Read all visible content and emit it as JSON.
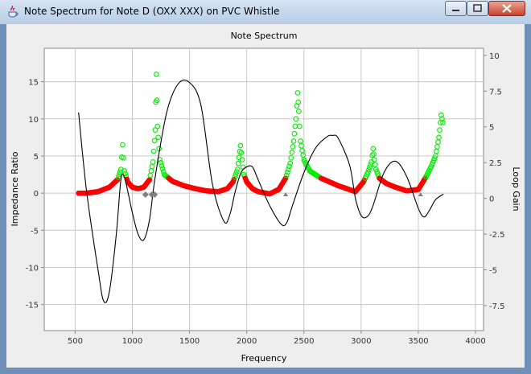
{
  "window": {
    "title": "Note Spectrum for Note D (OXX XXX) on PVC Whistle",
    "controls": [
      "minimize",
      "maximize",
      "close"
    ],
    "icon": "java-cup-icon"
  },
  "chart_data": {
    "type": "line",
    "title": "Note Spectrum",
    "xlabel": "Frequency",
    "ylabel": "Impedance Ratio",
    "y2label": "Loop Gain",
    "xlim": [
      230,
      4070
    ],
    "ylim": [
      -18.5,
      19.5
    ],
    "y2lim": [
      -9.25,
      10.5
    ],
    "xticks": [
      "500",
      "1000",
      "1500",
      "2000",
      "2500",
      "3000",
      "3500",
      "4000"
    ],
    "yticks": [
      "-15",
      "-10",
      "-5",
      "0",
      "5",
      "10",
      "15"
    ],
    "y2ticks": [
      "-7.5",
      "-5",
      "-2.5",
      "0",
      "2.5",
      "5",
      "7.5",
      "10"
    ],
    "grid": true,
    "colors": {
      "impedance_low": "#ff0000",
      "impedance_high": "#00ee00",
      "loop_gain": "#000000",
      "markers": "#808080"
    },
    "series": [
      {
        "kind": "impedance-markers",
        "x": [
          530,
          600,
          700,
          800,
          870,
          900,
          915,
          930,
          960,
          1000,
          1050,
          1100,
          1150,
          1180,
          1200,
          1210,
          1220,
          1240,
          1280,
          1350,
          1450,
          1550,
          1650,
          1750,
          1830,
          1880,
          1920,
          1945,
          1960,
          1975,
          2000,
          2050,
          2100,
          2200,
          2280,
          2340,
          2380,
          2410,
          2430,
          2445,
          2455,
          2470,
          2500,
          2550,
          2650,
          2800,
          2950,
          3020,
          3060,
          3090,
          3105,
          3115,
          3130,
          3160,
          3220,
          3300,
          3400,
          3500,
          3560,
          3610,
          3650,
          3680,
          3700,
          3715
        ],
        "y": [
          0,
          0,
          0.2,
          0.8,
          1.8,
          3.2,
          6.5,
          3.0,
          1.5,
          0.8,
          0.6,
          0.8,
          1.8,
          4.2,
          8.5,
          16.0,
          9.0,
          4.5,
          2.5,
          1.6,
          1.0,
          0.6,
          0.3,
          0.2,
          0.6,
          1.5,
          3.2,
          6.4,
          4.5,
          2.5,
          1.5,
          0.6,
          0.2,
          -0.1,
          0.5,
          2.0,
          4.0,
          7.0,
          10.0,
          13.5,
          11.0,
          7.0,
          4.5,
          3.0,
          2.0,
          1.0,
          0.2,
          1.5,
          2.8,
          4.2,
          6.0,
          4.5,
          3.2,
          2.0,
          1.3,
          0.8,
          0.3,
          0.5,
          2.0,
          3.5,
          5.0,
          7.5,
          10.5,
          9.5
        ],
        "threshold": 2
      },
      {
        "kind": "loop-gain",
        "axis": "right",
        "x": [
          530,
          600,
          700,
          750,
          800,
          860,
          900,
          930,
          960,
          1000,
          1050,
          1100,
          1150,
          1200,
          1300,
          1400,
          1500,
          1600,
          1700,
          1800,
          1850,
          1900,
          1950,
          2000,
          2050,
          2100,
          2200,
          2300,
          2350,
          2400,
          2500,
          2600,
          2700,
          2750,
          2800,
          2900,
          2950,
          3000,
          3050,
          3100,
          3200,
          3300,
          3400,
          3500,
          3550,
          3600,
          3650,
          3720
        ],
        "y": [
          6,
          0.5,
          -5,
          -7.2,
          -6.5,
          -2.5,
          1.3,
          1.5,
          0.5,
          -1,
          -2.5,
          -2.9,
          -1.5,
          1.5,
          6,
          8,
          8.1,
          6.5,
          1,
          -1.6,
          -1.2,
          0.5,
          1.8,
          2.2,
          2.2,
          1.3,
          -0.5,
          -1.8,
          -1.7,
          -0.5,
          1.8,
          3.5,
          4.3,
          4.4,
          4.2,
          2.3,
          0,
          -1.2,
          -1.3,
          -0.6,
          1.8,
          2.6,
          1.5,
          -0.7,
          -1.3,
          -0.8,
          -0.1,
          0.3
        ]
      },
      {
        "kind": "diamond-markers",
        "x": [
          1115,
          1170,
          1195
        ],
        "y": [
          -0.2,
          -0.2,
          -0.2
        ]
      },
      {
        "kind": "triangle-markers",
        "x": [
          2340,
          3520
        ],
        "y": [
          -0.2,
          -0.2
        ]
      }
    ]
  }
}
